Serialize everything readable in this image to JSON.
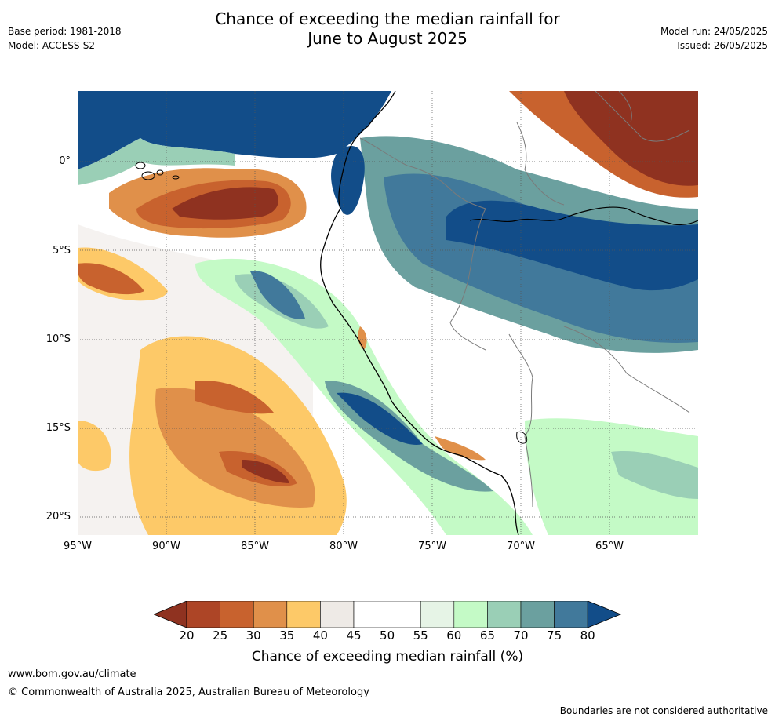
{
  "header": {
    "base_period": "Base period: 1981-2018",
    "model": "Model: ACCESS-S2",
    "title_line1": "Chance of exceeding the median rainfall for",
    "title_line2": "June to August 2025",
    "model_run": "Model run: 24/05/2025",
    "issued": "Issued: 26/05/2025"
  },
  "map": {
    "lat_ticks": [
      "0°",
      "5°S",
      "10°S",
      "15°S",
      "20°S"
    ],
    "lon_ticks": [
      "95°W",
      "90°W",
      "85°W",
      "80°W",
      "75°W",
      "70°W",
      "65°W"
    ]
  },
  "colorbar": {
    "title": "Chance of exceeding median rainfall (%)",
    "labels": [
      "20",
      "25",
      "30",
      "35",
      "40",
      "45",
      "50",
      "55",
      "60",
      "65",
      "70",
      "75",
      "80"
    ],
    "colors": [
      "#8f3220",
      "#ad4526",
      "#c8622e",
      "#e0904a",
      "#fdc968",
      "#eeeae6",
      "#ffffff",
      "#ffffff",
      "#e6f4e6",
      "#c4fac6",
      "#9acfb6",
      "#6ba09f",
      "#41799b",
      "#124d89"
    ]
  },
  "footer": {
    "url": "www.bom.gov.au/climate",
    "copyright": "© Commonwealth of Australia 2025, Australian Bureau of Meteorology",
    "disclaimer": "Boundaries are not considered authoritative"
  }
}
